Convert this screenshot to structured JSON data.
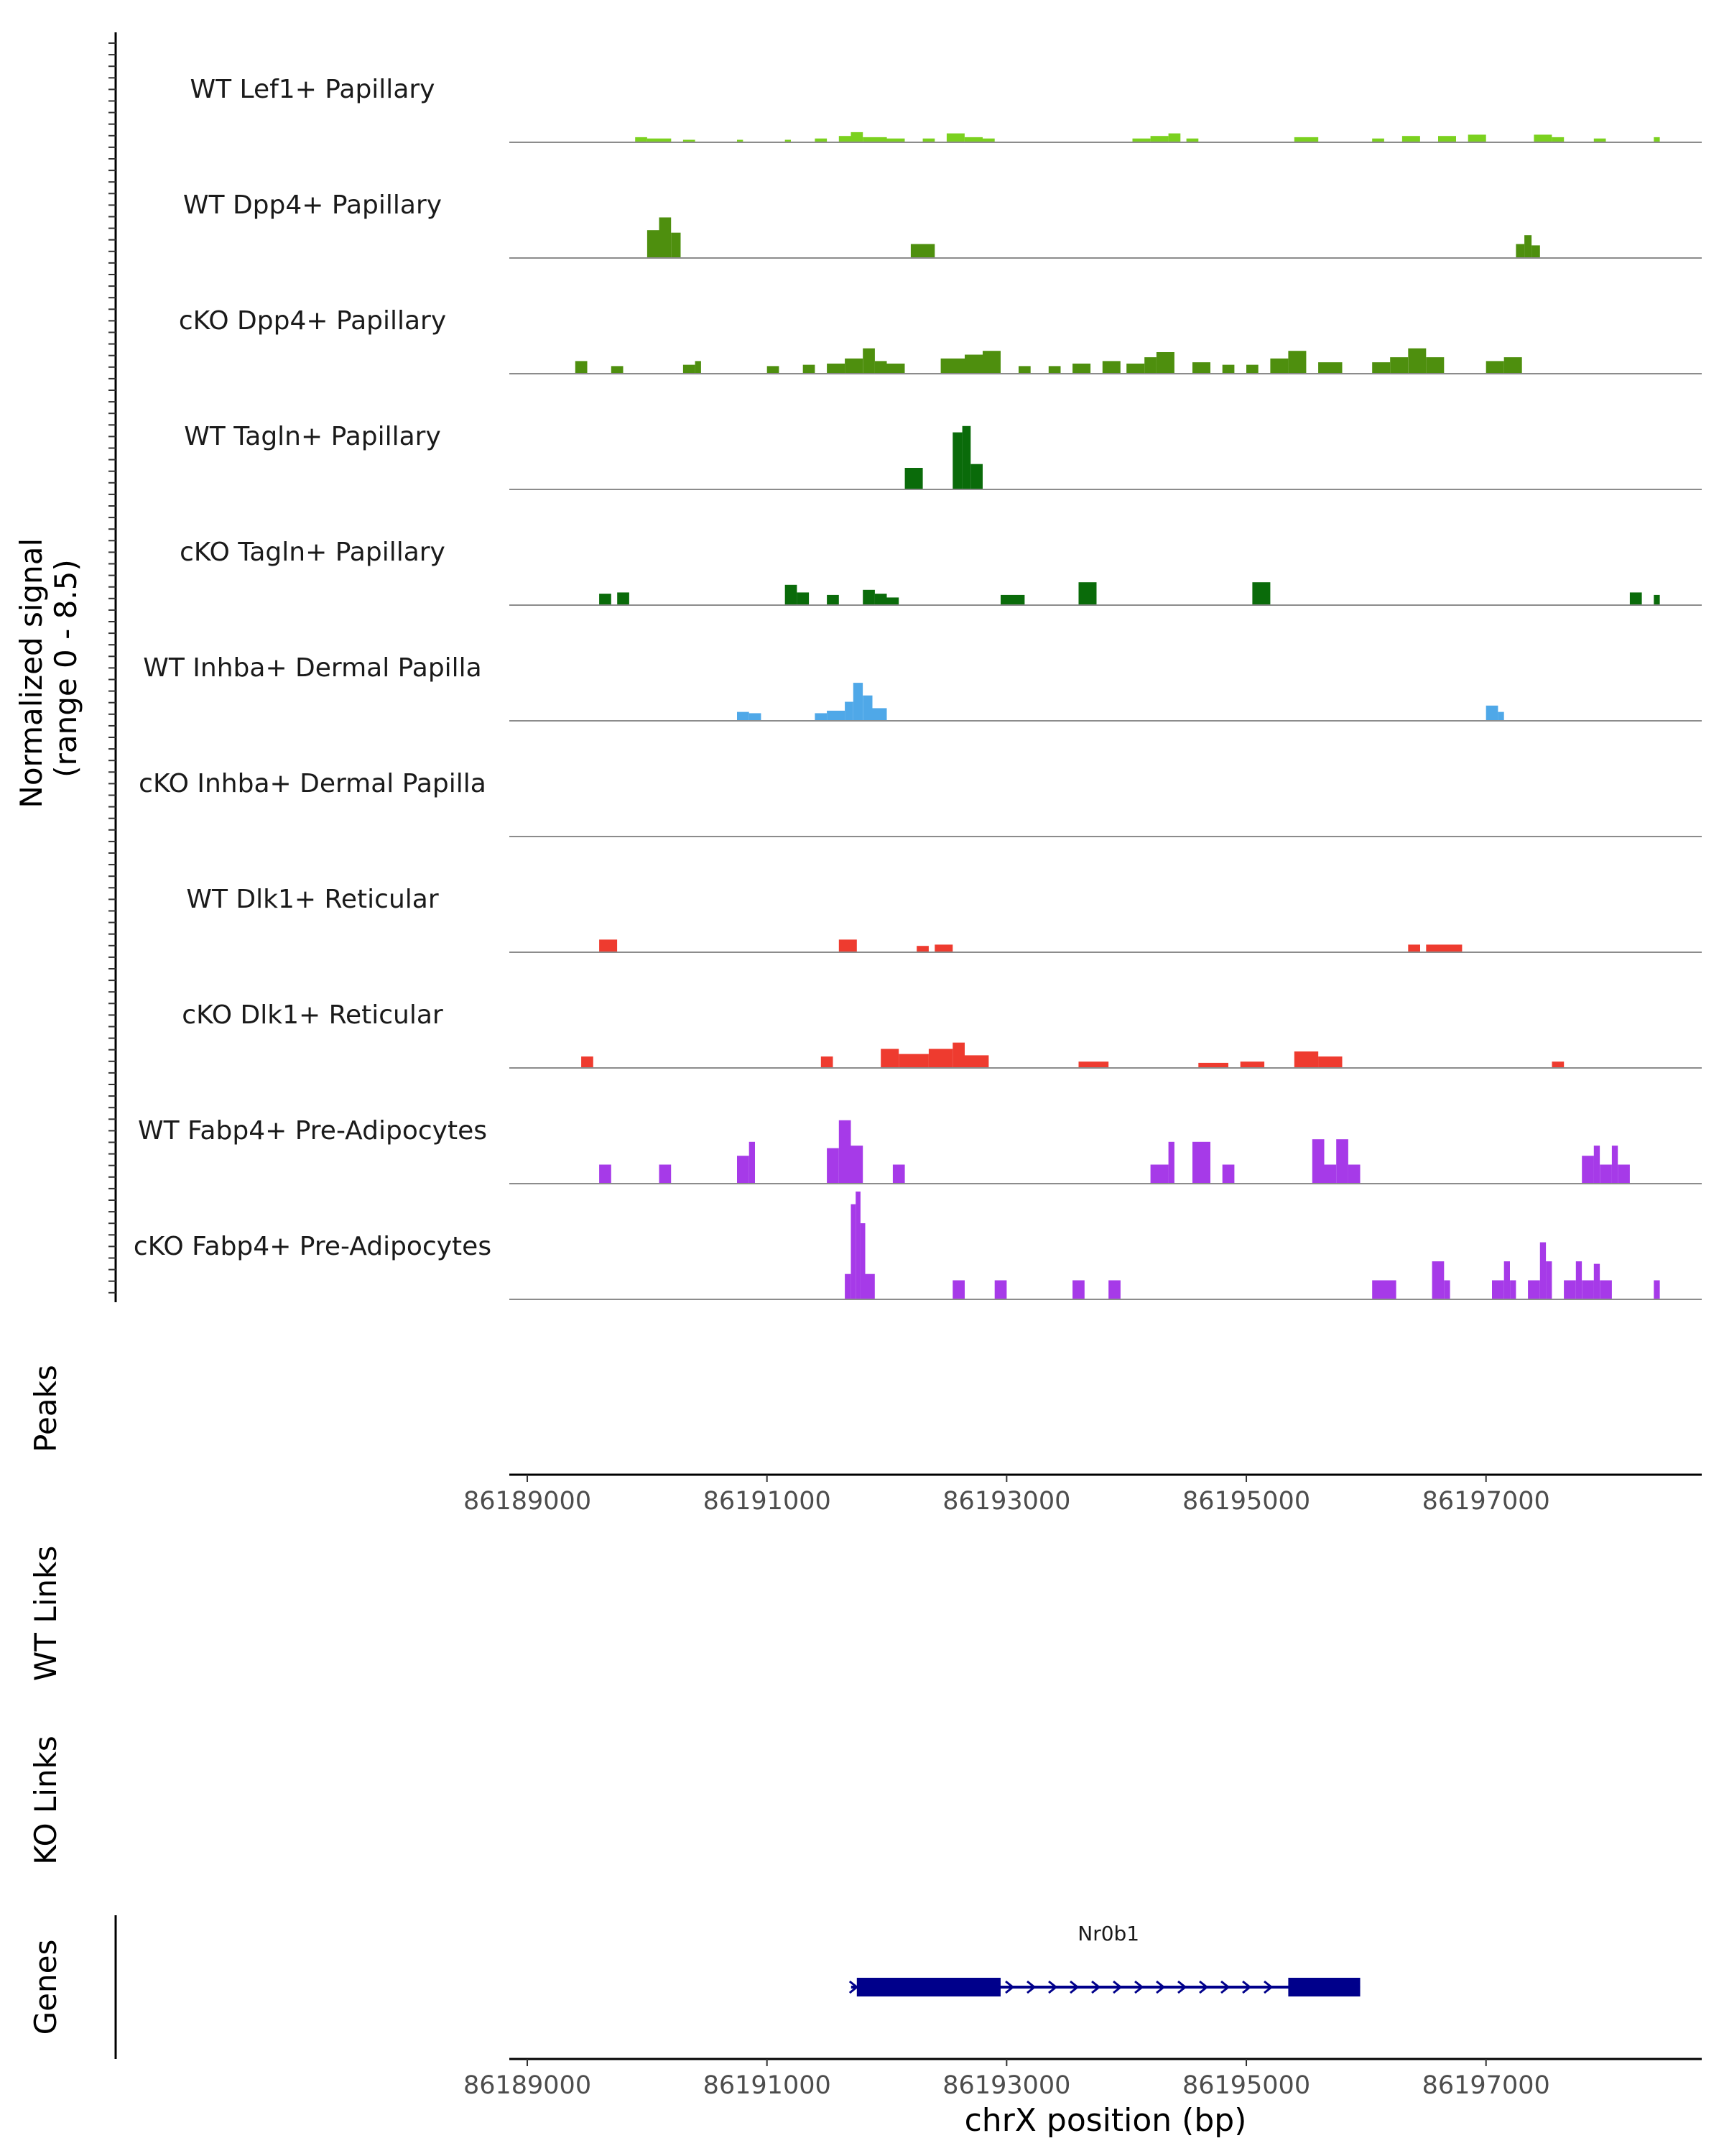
{
  "chart_data": {
    "type": "area",
    "title": "",
    "region": {
      "chrom": "chrX",
      "start": 86188850,
      "end": 86198800
    },
    "ylabel": "Normalized signal\n(range 0 - 8.5)",
    "ylabel_lines": [
      "Normalized signal",
      "(range 0 - 8.5)"
    ],
    "yrange": [
      0,
      8.5
    ],
    "xlabel": "chrX position (bp)",
    "xticks": [
      86189000,
      86191000,
      86193000,
      86195000,
      86197000
    ],
    "xtick_labels": [
      "86189000",
      "86191000",
      "86193000",
      "86195000",
      "86197000"
    ],
    "panel_labels": {
      "peaks": "Peaks",
      "wt_links": "WT Links",
      "ko_links": "KO Links",
      "genes": "Genes"
    },
    "tracks": [
      {
        "name": "WT Lef1+ Papillary",
        "color": "#7bd11f",
        "regions": [
          [
            86189900,
            86190000,
            0.4
          ],
          [
            86190000,
            86190200,
            0.3
          ],
          [
            86190300,
            86190400,
            0.2
          ],
          [
            86190750,
            86190800,
            0.2
          ],
          [
            86191150,
            86191200,
            0.2
          ],
          [
            86191400,
            86191500,
            0.3
          ],
          [
            86191600,
            86191700,
            0.5
          ],
          [
            86191700,
            86191800,
            0.8
          ],
          [
            86191800,
            86192000,
            0.4
          ],
          [
            86192000,
            86192150,
            0.3
          ],
          [
            86192300,
            86192400,
            0.3
          ],
          [
            86192500,
            86192650,
            0.7
          ],
          [
            86192650,
            86192800,
            0.4
          ],
          [
            86192800,
            86192900,
            0.3
          ],
          [
            86194050,
            86194200,
            0.3
          ],
          [
            86194200,
            86194350,
            0.5
          ],
          [
            86194350,
            86194450,
            0.7
          ],
          [
            86194500,
            86194600,
            0.3
          ],
          [
            86195400,
            86195600,
            0.4
          ],
          [
            86196050,
            86196150,
            0.3
          ],
          [
            86196300,
            86196450,
            0.5
          ],
          [
            86196600,
            86196750,
            0.5
          ],
          [
            86196850,
            86197000,
            0.6
          ],
          [
            86197400,
            86197550,
            0.6
          ],
          [
            86197550,
            86197650,
            0.4
          ],
          [
            86197900,
            86198000,
            0.3
          ],
          [
            86198400,
            86198450,
            0.4
          ]
        ]
      },
      {
        "name": "WT Dpp4+ Papillary",
        "color": "#4e8f0e",
        "regions": [
          [
            86190000,
            86190100,
            2.2
          ],
          [
            86190100,
            86190200,
            3.2
          ],
          [
            86190200,
            86190280,
            2.0
          ],
          [
            86192200,
            86192400,
            1.1
          ],
          [
            86197250,
            86197320,
            1.1
          ],
          [
            86197320,
            86197380,
            1.8
          ],
          [
            86197380,
            86197450,
            1.0
          ]
        ]
      },
      {
        "name": "cKO Dpp4+ Papillary",
        "color": "#4e8f0e",
        "regions": [
          [
            86189400,
            86189500,
            1.0
          ],
          [
            86189700,
            86189800,
            0.6
          ],
          [
            86190300,
            86190400,
            0.7
          ],
          [
            86190400,
            86190450,
            1.0
          ],
          [
            86191000,
            86191100,
            0.6
          ],
          [
            86191300,
            86191400,
            0.7
          ],
          [
            86191500,
            86191650,
            0.8
          ],
          [
            86191650,
            86191800,
            1.2
          ],
          [
            86191800,
            86191900,
            2.0
          ],
          [
            86191900,
            86192000,
            1.0
          ],
          [
            86192000,
            86192150,
            0.8
          ],
          [
            86192450,
            86192650,
            1.2
          ],
          [
            86192650,
            86192800,
            1.5
          ],
          [
            86192800,
            86192950,
            1.8
          ],
          [
            86193100,
            86193200,
            0.6
          ],
          [
            86193350,
            86193450,
            0.6
          ],
          [
            86193550,
            86193700,
            0.8
          ],
          [
            86193800,
            86193950,
            1.0
          ],
          [
            86194000,
            86194150,
            0.8
          ],
          [
            86194150,
            86194250,
            1.3
          ],
          [
            86194250,
            86194400,
            1.7
          ],
          [
            86194550,
            86194700,
            0.9
          ],
          [
            86194800,
            86194900,
            0.7
          ],
          [
            86195000,
            86195100,
            0.7
          ],
          [
            86195200,
            86195350,
            1.2
          ],
          [
            86195350,
            86195500,
            1.8
          ],
          [
            86195600,
            86195800,
            0.9
          ],
          [
            86196050,
            86196200,
            0.9
          ],
          [
            86196200,
            86196350,
            1.3
          ],
          [
            86196350,
            86196500,
            2.0
          ],
          [
            86196500,
            86196650,
            1.3
          ],
          [
            86197000,
            86197150,
            1.0
          ],
          [
            86197150,
            86197300,
            1.3
          ]
        ]
      },
      {
        "name": "WT Tagln+ Papillary",
        "color": "#0a6b0a",
        "regions": [
          [
            86192150,
            86192300,
            1.7
          ],
          [
            86192550,
            86192630,
            4.5
          ],
          [
            86192630,
            86192700,
            5.0
          ],
          [
            86192700,
            86192800,
            2.0
          ]
        ]
      },
      {
        "name": "cKO Tagln+ Papillary",
        "color": "#0a6b0a",
        "regions": [
          [
            86189600,
            86189700,
            0.9
          ],
          [
            86189750,
            86189850,
            1.0
          ],
          [
            86191150,
            86191250,
            1.6
          ],
          [
            86191250,
            86191350,
            1.0
          ],
          [
            86191500,
            86191600,
            0.8
          ],
          [
            86191800,
            86191900,
            1.2
          ],
          [
            86191900,
            86192000,
            0.9
          ],
          [
            86192000,
            86192100,
            0.6
          ],
          [
            86192950,
            86193150,
            0.8
          ],
          [
            86193600,
            86193750,
            1.8
          ],
          [
            86195050,
            86195200,
            1.8
          ],
          [
            86198200,
            86198300,
            1.0
          ],
          [
            86198400,
            86198450,
            0.8
          ]
        ]
      },
      {
        "name": "WT Inhba+ Dermal Papilla",
        "color": "#4fa8e8",
        "regions": [
          [
            86190750,
            86190850,
            0.7
          ],
          [
            86190850,
            86190950,
            0.6
          ],
          [
            86191400,
            86191500,
            0.6
          ],
          [
            86191500,
            86191650,
            0.8
          ],
          [
            86191650,
            86191720,
            1.5
          ],
          [
            86191720,
            86191800,
            3.0
          ],
          [
            86191800,
            86191880,
            2.0
          ],
          [
            86191880,
            86192000,
            1.0
          ],
          [
            86197000,
            86197100,
            1.2
          ],
          [
            86197100,
            86197150,
            0.7
          ]
        ]
      },
      {
        "name": "cKO Inhba+ Dermal Papilla",
        "color": "#4fa8e8",
        "regions": []
      },
      {
        "name": "WT Dlk1+ Reticular",
        "color": "#ee3b2f",
        "regions": [
          [
            86189600,
            86189750,
            1.0
          ],
          [
            86191600,
            86191750,
            1.0
          ],
          [
            86192250,
            86192350,
            0.5
          ],
          [
            86192400,
            86192550,
            0.6
          ],
          [
            86196350,
            86196450,
            0.6
          ],
          [
            86196500,
            86196800,
            0.6
          ]
        ]
      },
      {
        "name": "cKO Dlk1+ Reticular",
        "color": "#ee3b2f",
        "regions": [
          [
            86189450,
            86189550,
            0.9
          ],
          [
            86191450,
            86191550,
            0.9
          ],
          [
            86191950,
            86192100,
            1.5
          ],
          [
            86192100,
            86192350,
            1.1
          ],
          [
            86192350,
            86192550,
            1.5
          ],
          [
            86192550,
            86192650,
            2.0
          ],
          [
            86192650,
            86192850,
            1.0
          ],
          [
            86193600,
            86193850,
            0.5
          ],
          [
            86194600,
            86194850,
            0.4
          ],
          [
            86194950,
            86195150,
            0.5
          ],
          [
            86195400,
            86195600,
            1.3
          ],
          [
            86195600,
            86195800,
            0.9
          ],
          [
            86197550,
            86197650,
            0.5
          ]
        ]
      },
      {
        "name": "WT Fabp4+ Pre-Adipocytes",
        "color": "#a63ae8",
        "regions": [
          [
            86189600,
            86189700,
            1.5
          ],
          [
            86190100,
            86190200,
            1.5
          ],
          [
            86190750,
            86190850,
            2.2
          ],
          [
            86190850,
            86190900,
            3.3
          ],
          [
            86191500,
            86191600,
            2.8
          ],
          [
            86191600,
            86191700,
            5.0
          ],
          [
            86191700,
            86191800,
            3.0
          ],
          [
            86192050,
            86192150,
            1.5
          ],
          [
            86194200,
            86194350,
            1.5
          ],
          [
            86194350,
            86194400,
            3.3
          ],
          [
            86194550,
            86194700,
            3.3
          ],
          [
            86194800,
            86194900,
            1.5
          ],
          [
            86195550,
            86195650,
            3.5
          ],
          [
            86195650,
            86195750,
            1.5
          ],
          [
            86195750,
            86195850,
            3.5
          ],
          [
            86195850,
            86195950,
            1.5
          ],
          [
            86197800,
            86197900,
            2.2
          ],
          [
            86197900,
            86197950,
            3.0
          ],
          [
            86197950,
            86198050,
            1.5
          ],
          [
            86198050,
            86198100,
            3.0
          ],
          [
            86198100,
            86198200,
            1.5
          ]
        ]
      },
      {
        "name": "cKO Fabp4+ Pre-Adipocytes",
        "color": "#a63ae8",
        "regions": [
          [
            86191650,
            86191700,
            2.0
          ],
          [
            86191700,
            86191740,
            7.5
          ],
          [
            86191740,
            86191780,
            8.5
          ],
          [
            86191780,
            86191820,
            6.0
          ],
          [
            86191820,
            86191900,
            2.0
          ],
          [
            86192550,
            86192650,
            1.5
          ],
          [
            86192900,
            86193000,
            1.5
          ],
          [
            86193550,
            86193650,
            1.5
          ],
          [
            86193850,
            86193950,
            1.5
          ],
          [
            86196050,
            86196250,
            1.5
          ],
          [
            86196550,
            86196650,
            3.0
          ],
          [
            86196650,
            86196700,
            1.5
          ],
          [
            86197050,
            86197150,
            1.5
          ],
          [
            86197150,
            86197200,
            3.0
          ],
          [
            86197200,
            86197250,
            1.5
          ],
          [
            86197350,
            86197450,
            1.5
          ],
          [
            86197450,
            86197500,
            4.5
          ],
          [
            86197500,
            86197550,
            3.0
          ],
          [
            86197650,
            86197750,
            1.5
          ],
          [
            86197750,
            86197800,
            3.0
          ],
          [
            86197800,
            86197900,
            1.5
          ],
          [
            86197900,
            86197950,
            2.8
          ],
          [
            86197950,
            86198050,
            1.5
          ],
          [
            86198400,
            86198450,
            1.5
          ]
        ]
      }
    ],
    "peaks": [],
    "wt_links": [],
    "ko_links": [],
    "genes": [
      {
        "name": "Nr0b1",
        "strand": "+",
        "color": "#00008b",
        "start": 86191750,
        "end": 86195950,
        "exons": [
          [
            86191750,
            86192950
          ],
          [
            86195350,
            86195950
          ]
        ]
      }
    ]
  }
}
